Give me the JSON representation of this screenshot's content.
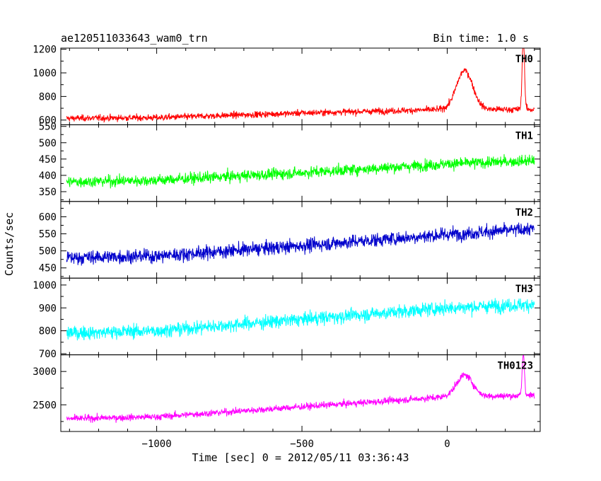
{
  "header": {
    "title": "ae120511033643_wam0_trn",
    "bin_time": "Bin time: 1.0 s"
  },
  "chart_data": {
    "type": "line",
    "xlabel": "Time [sec] 0 = 2012/05/11 03:36:43",
    "ylabel": "Counts/sec",
    "xlim": [
      -1330,
      320
    ],
    "x_ticks": [
      -1000,
      -500,
      0
    ],
    "x_tick_labels": [
      "−1000",
      "−500",
      "0"
    ],
    "grid": false,
    "panels": [
      {
        "name": "TH0",
        "color": "#ff0000",
        "ylim": [
          560,
          1210
        ],
        "y_ticks": [
          600,
          800,
          1000,
          1200
        ],
        "trend": {
          "x": [
            -1310,
            -1000,
            -500,
            0,
            300
          ],
          "y": [
            615,
            620,
            660,
            690,
            690
          ]
        },
        "noise": 35,
        "peaks": [
          {
            "x": 60,
            "height": 330,
            "width": 28
          },
          {
            "x": 262,
            "height": 620,
            "width": 4
          }
        ]
      },
      {
        "name": "TH1",
        "color": "#00ff00",
        "ylim": [
          320,
          555
        ],
        "y_ticks": [
          350,
          400,
          450,
          500,
          550
        ],
        "trend": {
          "x": [
            -1310,
            -1000,
            -500,
            0,
            300
          ],
          "y": [
            380,
            385,
            408,
            435,
            445
          ]
        },
        "noise": 22,
        "peaks": []
      },
      {
        "name": "TH2",
        "color": "#0000cc",
        "ylim": [
          420,
          645
        ],
        "y_ticks": [
          450,
          500,
          550,
          600
        ],
        "trend": {
          "x": [
            -1310,
            -1000,
            -500,
            0,
            300
          ],
          "y": [
            480,
            485,
            515,
            548,
            565
          ]
        },
        "noise": 26,
        "peaks": []
      },
      {
        "name": "TH3",
        "color": "#00ffff",
        "ylim": [
          695,
          1030
        ],
        "y_ticks": [
          700,
          800,
          900,
          1000
        ],
        "trend": {
          "x": [
            -1310,
            -1000,
            -500,
            0,
            300
          ],
          "y": [
            790,
            800,
            850,
            900,
            915
          ]
        },
        "noise": 38,
        "peaks": []
      },
      {
        "name": "TH0123",
        "color": "#ff00ff",
        "ylim": [
          2100,
          3250
        ],
        "y_ticks": [
          2500,
          3000
        ],
        "trend": {
          "x": [
            -1310,
            -1000,
            -500,
            0,
            300
          ],
          "y": [
            2290,
            2320,
            2470,
            2620,
            2640
          ]
        },
        "noise": 65,
        "peaks": [
          {
            "x": 60,
            "height": 320,
            "width": 28
          },
          {
            "x": 262,
            "height": 620,
            "width": 4
          }
        ]
      }
    ]
  }
}
